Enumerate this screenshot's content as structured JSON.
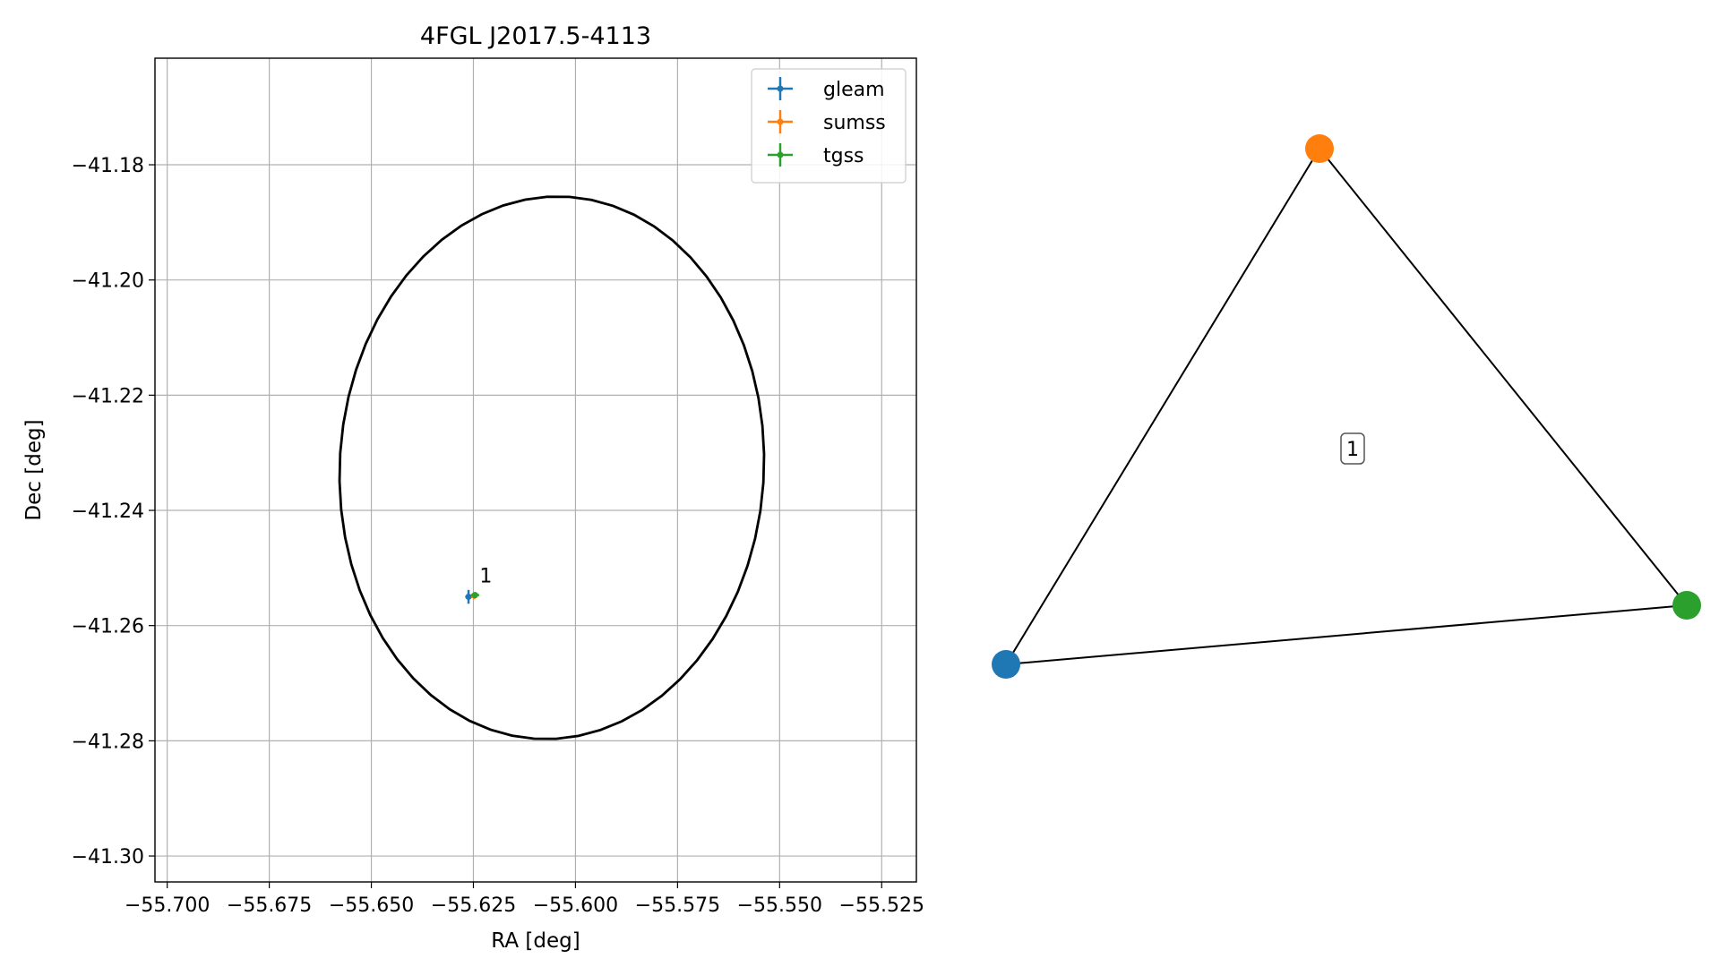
{
  "chart_data": [
    {
      "type": "scatter",
      "title": "4FGL J2017.5-4113",
      "xlabel": "RA [deg]",
      "ylabel": "Dec [deg]",
      "xlim": [
        -55.703,
        -55.5165
      ],
      "ylim": [
        -41.3045,
        -41.1615
      ],
      "xticks": [
        -55.7,
        -55.675,
        -55.65,
        -55.625,
        -55.6,
        -55.575,
        -55.55,
        -55.525
      ],
      "xtick_labels": [
        "−55.700",
        "−55.675",
        "−55.650",
        "−55.625",
        "−55.600",
        "−55.575",
        "−55.550",
        "−55.525"
      ],
      "yticks": [
        -41.18,
        -41.2,
        -41.22,
        -41.24,
        -41.26,
        -41.28,
        -41.3
      ],
      "ytick_labels": [
        "−41.18",
        "−41.20",
        "−41.22",
        "−41.24",
        "−41.26",
        "−41.28",
        "−41.30"
      ],
      "grid": true,
      "legend_position": "top-right",
      "ellipse": {
        "center": [
          -55.6058,
          -41.2326
        ],
        "ra_semi_axis": 0.0521,
        "dec_semi_axis": 0.047,
        "angle_deg": 8,
        "color": "#000000"
      },
      "series": [
        {
          "name": "gleam",
          "color": "#1f77b4",
          "x": [
            -55.6262
          ],
          "y": [
            -41.255
          ],
          "xerr": [
            0.0008
          ],
          "yerr": [
            0.0012
          ]
        },
        {
          "name": "sumss",
          "color": "#ff7f0e",
          "x": [
            -55.6248
          ],
          "y": [
            -41.2548
          ],
          "xerr": [
            0.0006
          ],
          "yerr": [
            0.0006
          ]
        },
        {
          "name": "tgss",
          "color": "#2ca02c",
          "x": [
            -55.6246
          ],
          "y": [
            -41.2547
          ],
          "xerr": [
            0.001
          ],
          "yerr": [
            0.0005
          ]
        }
      ],
      "annotations": [
        {
          "text": "1",
          "x": -55.6235,
          "y": -41.2525
        }
      ]
    },
    {
      "type": "network",
      "nodes": [
        {
          "id": "gleam",
          "color": "#1f77b4"
        },
        {
          "id": "sumss",
          "color": "#ff7f0e"
        },
        {
          "id": "tgss",
          "color": "#2ca02c"
        }
      ],
      "edges": [
        [
          "gleam",
          "sumss"
        ],
        [
          "sumss",
          "tgss"
        ],
        [
          "tgss",
          "gleam"
        ]
      ],
      "label": "1"
    }
  ]
}
